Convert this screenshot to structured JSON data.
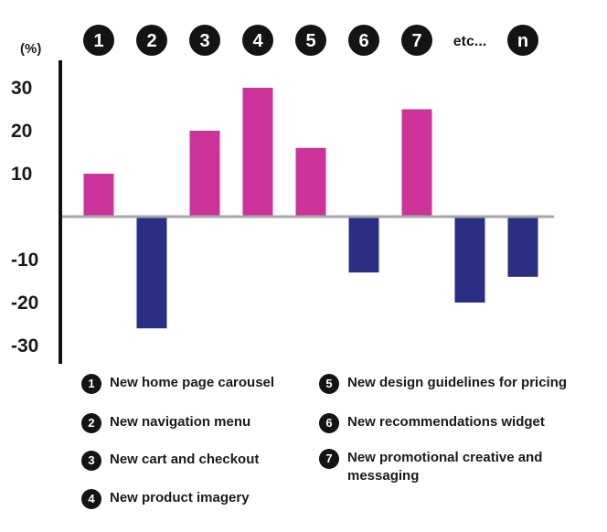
{
  "chart_data": {
    "type": "bar",
    "unit_label": "(%)",
    "categories": [
      "1",
      "2",
      "3",
      "4",
      "5",
      "6",
      "7",
      "etc...",
      "n"
    ],
    "values": [
      10,
      -26,
      20,
      30,
      16,
      -13,
      25,
      -20,
      -14
    ],
    "bubble_categories": [
      "1",
      "2",
      "3",
      "4",
      "5",
      "6",
      "7",
      "n"
    ],
    "yticks": [
      30,
      20,
      10,
      -10,
      -20,
      -30
    ],
    "ylim": [
      -38,
      38
    ],
    "colors": {
      "positive": "#cc3399",
      "negative": "#2b2f84",
      "axis": "#111111",
      "baseline": "#a6a6a6",
      "bubble": "#141414"
    }
  },
  "legend": {
    "items": [
      {
        "num": "1",
        "label": "New home page carousel"
      },
      {
        "num": "2",
        "label": "New navigation menu"
      },
      {
        "num": "3",
        "label": "New cart and checkout"
      },
      {
        "num": "4",
        "label": "New product imagery"
      },
      {
        "num": "5",
        "label": "New design guidelines for pricing"
      },
      {
        "num": "6",
        "label": "New recommendations widget"
      },
      {
        "num": "7",
        "label": "New promotional creative and messaging"
      }
    ]
  }
}
